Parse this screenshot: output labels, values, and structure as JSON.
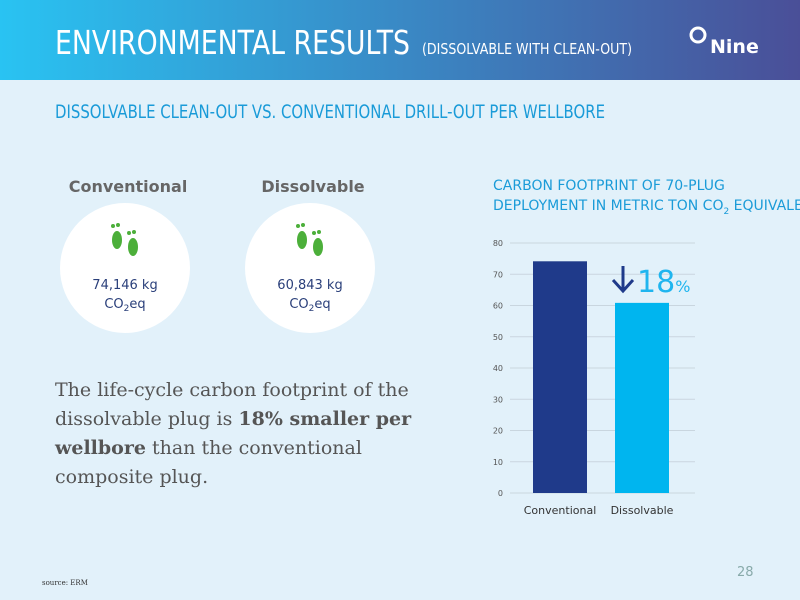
{
  "header": {
    "title": "ENVIRONMENTAL RESULTS",
    "subtitle": "(DISSOLVABLE WITH CLEAN-OUT)",
    "logo": "Nine"
  },
  "section_title": "DISSOLVABLE CLEAN-OUT VS. CONVENTIONAL DRILL-OUT PER WELLBORE",
  "cards": [
    {
      "label": "Conventional",
      "amount": "74,146 kg",
      "unit": [
        "CO",
        "2",
        "eq"
      ]
    },
    {
      "label": "Dissolvable",
      "amount": "60,843 kg",
      "unit": [
        "CO",
        "2",
        "eq"
      ]
    }
  ],
  "body": [
    [
      "The life-cycle carbon footprint of the"
    ],
    [
      "dissolvable plug is ",
      "18% smaller per"
    ],
    [
      "wellbore",
      " than the conventional"
    ],
    [
      "composite plug."
    ]
  ],
  "chart_data": {
    "type": "bar",
    "title": [
      "CARBON FOOTPRINT OF 70-PLUG",
      "DEPLOYMENT IN METRIC TON CO",
      "2",
      " EQUIVALENTS"
    ],
    "categories": [
      "Conventional",
      "Dissolvable"
    ],
    "values": [
      74.146,
      60.843
    ],
    "colors": [
      "#1f3a8a",
      "#00b5ef"
    ],
    "ylim": [
      0,
      80
    ],
    "yticks": [
      0,
      10,
      20,
      30,
      40,
      50,
      60,
      70,
      80
    ],
    "grid": true,
    "annotation": [
      "18",
      "%"
    ]
  },
  "page_number": "28",
  "source": "source:  ERM"
}
